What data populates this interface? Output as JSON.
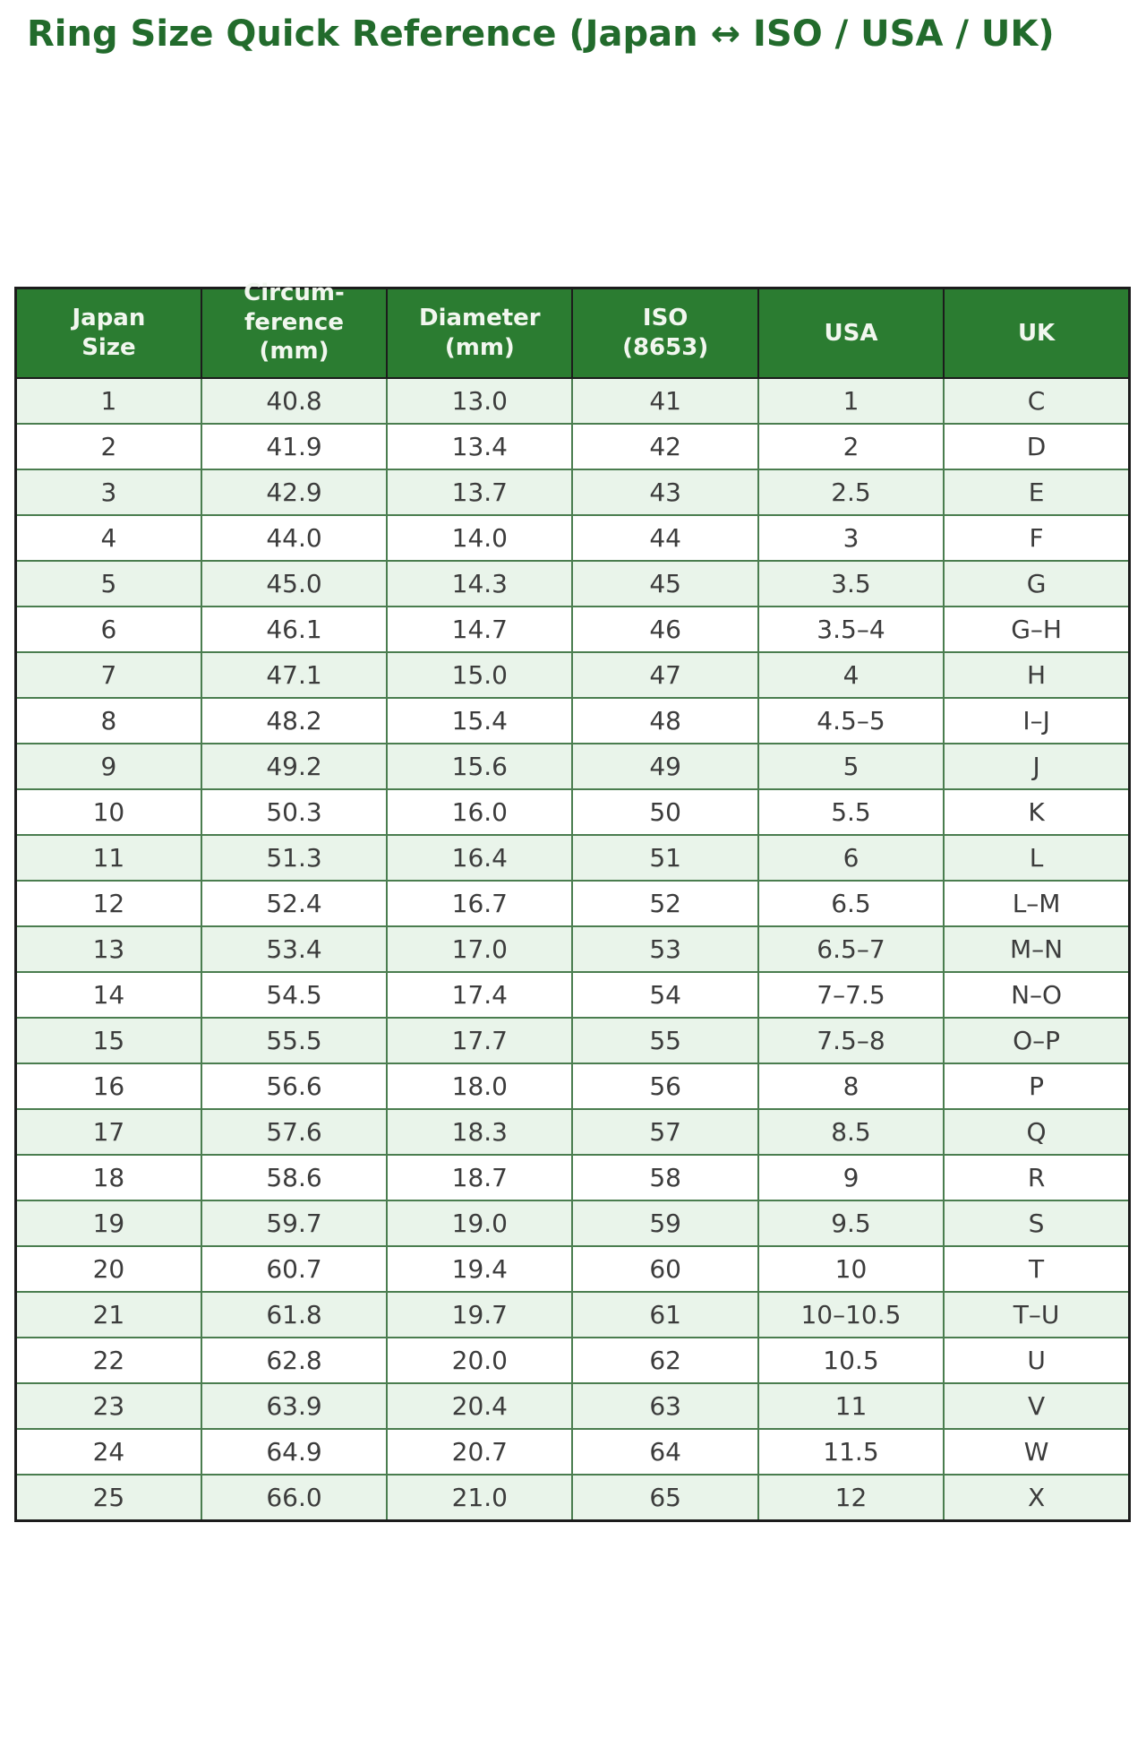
{
  "page": {
    "title": "Ring Size Quick Reference (Japan ↔ ISO / USA / UK)"
  },
  "colors": {
    "title_green": "#226b2c",
    "header_bg": "#2b7c31",
    "header_text": "#f2f7ef",
    "row_alt_green": "#e9f4ea",
    "row_white": "#ffffff",
    "body_text": "#3c3c3c",
    "cell_border": "#4a7d4f",
    "outer_border": "#1c1c1c"
  },
  "chart_data": {
    "type": "table",
    "title": "Ring Size Quick Reference (Japan ↔ ISO / USA / UK)",
    "columns": [
      {
        "id": "japan",
        "lines": [
          "Japan",
          "Size"
        ]
      },
      {
        "id": "circumference",
        "lines": [
          "Circum-",
          "ference",
          "(mm)"
        ]
      },
      {
        "id": "diameter",
        "lines": [
          "Diameter",
          "(mm)"
        ]
      },
      {
        "id": "iso",
        "lines": [
          "ISO",
          "(8653)"
        ]
      },
      {
        "id": "usa",
        "lines": [
          "USA"
        ]
      },
      {
        "id": "uk",
        "lines": [
          "UK"
        ]
      }
    ],
    "rows": [
      [
        "1",
        "40.8",
        "13.0",
        "41",
        "1",
        "C"
      ],
      [
        "2",
        "41.9",
        "13.4",
        "42",
        "2",
        "D"
      ],
      [
        "3",
        "42.9",
        "13.7",
        "43",
        "2.5",
        "E"
      ],
      [
        "4",
        "44.0",
        "14.0",
        "44",
        "3",
        "F"
      ],
      [
        "5",
        "45.0",
        "14.3",
        "45",
        "3.5",
        "G"
      ],
      [
        "6",
        "46.1",
        "14.7",
        "46",
        "3.5–4",
        "G–H"
      ],
      [
        "7",
        "47.1",
        "15.0",
        "47",
        "4",
        "H"
      ],
      [
        "8",
        "48.2",
        "15.4",
        "48",
        "4.5–5",
        "I–J"
      ],
      [
        "9",
        "49.2",
        "15.6",
        "49",
        "5",
        "J"
      ],
      [
        "10",
        "50.3",
        "16.0",
        "50",
        "5.5",
        "K"
      ],
      [
        "11",
        "51.3",
        "16.4",
        "51",
        "6",
        "L"
      ],
      [
        "12",
        "52.4",
        "16.7",
        "52",
        "6.5",
        "L–M"
      ],
      [
        "13",
        "53.4",
        "17.0",
        "53",
        "6.5–7",
        "M–N"
      ],
      [
        "14",
        "54.5",
        "17.4",
        "54",
        "7–7.5",
        "N–O"
      ],
      [
        "15",
        "55.5",
        "17.7",
        "55",
        "7.5–8",
        "O–P"
      ],
      [
        "16",
        "56.6",
        "18.0",
        "56",
        "8",
        "P"
      ],
      [
        "17",
        "57.6",
        "18.3",
        "57",
        "8.5",
        "Q"
      ],
      [
        "18",
        "58.6",
        "18.7",
        "58",
        "9",
        "R"
      ],
      [
        "19",
        "59.7",
        "19.0",
        "59",
        "9.5",
        "S"
      ],
      [
        "20",
        "60.7",
        "19.4",
        "60",
        "10",
        "T"
      ],
      [
        "21",
        "61.8",
        "19.7",
        "61",
        "10–10.5",
        "T–U"
      ],
      [
        "22",
        "62.8",
        "20.0",
        "62",
        "10.5",
        "U"
      ],
      [
        "23",
        "63.9",
        "20.4",
        "63",
        "11",
        "V"
      ],
      [
        "24",
        "64.9",
        "20.7",
        "64",
        "11.5",
        "W"
      ],
      [
        "25",
        "66.0",
        "21.0",
        "65",
        "12",
        "X"
      ]
    ]
  }
}
